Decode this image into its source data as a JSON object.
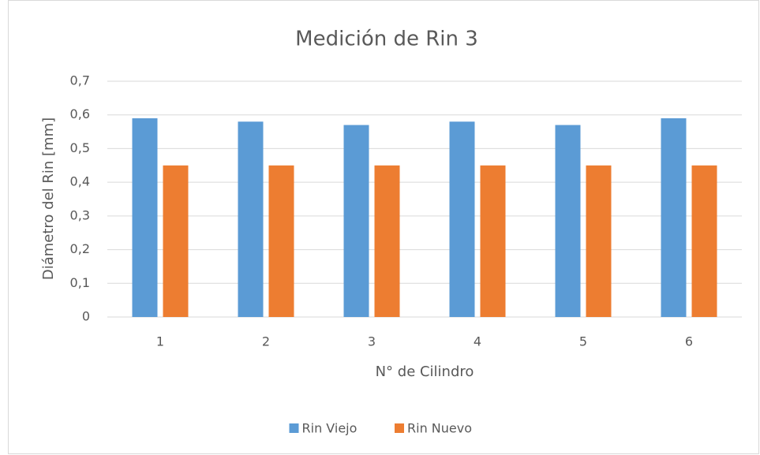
{
  "chart_data": {
    "type": "bar",
    "title": "Medición de Rin 3",
    "x_label": "N° de Cilindro",
    "y_label": "Diámetro del Rin [mm]",
    "categories": [
      "1",
      "2",
      "3",
      "4",
      "5",
      "6"
    ],
    "series": [
      {
        "name": "Rin Viejo",
        "color": "#5b9bd5",
        "values": [
          0.59,
          0.58,
          0.57,
          0.58,
          0.57,
          0.59
        ]
      },
      {
        "name": "Rin Nuevo",
        "color": "#ed7d31",
        "values": [
          0.45,
          0.45,
          0.45,
          0.45,
          0.45,
          0.45
        ]
      }
    ],
    "ylim": [
      0,
      0.7
    ],
    "yticks": [
      0,
      {
        "value": 0.1,
        "label": "0,1"
      },
      {
        "value": 0.2,
        "label": "0,2"
      },
      {
        "value": 0.3,
        "label": "0,3"
      },
      {
        "value": 0.4,
        "label": "0,4"
      },
      {
        "value": 0.5,
        "label": "0,5"
      },
      {
        "value": 0.6,
        "label": "0,6"
      },
      {
        "value": 0.7,
        "label": "0,7"
      }
    ],
    "grid": true,
    "legend": "bottom"
  }
}
